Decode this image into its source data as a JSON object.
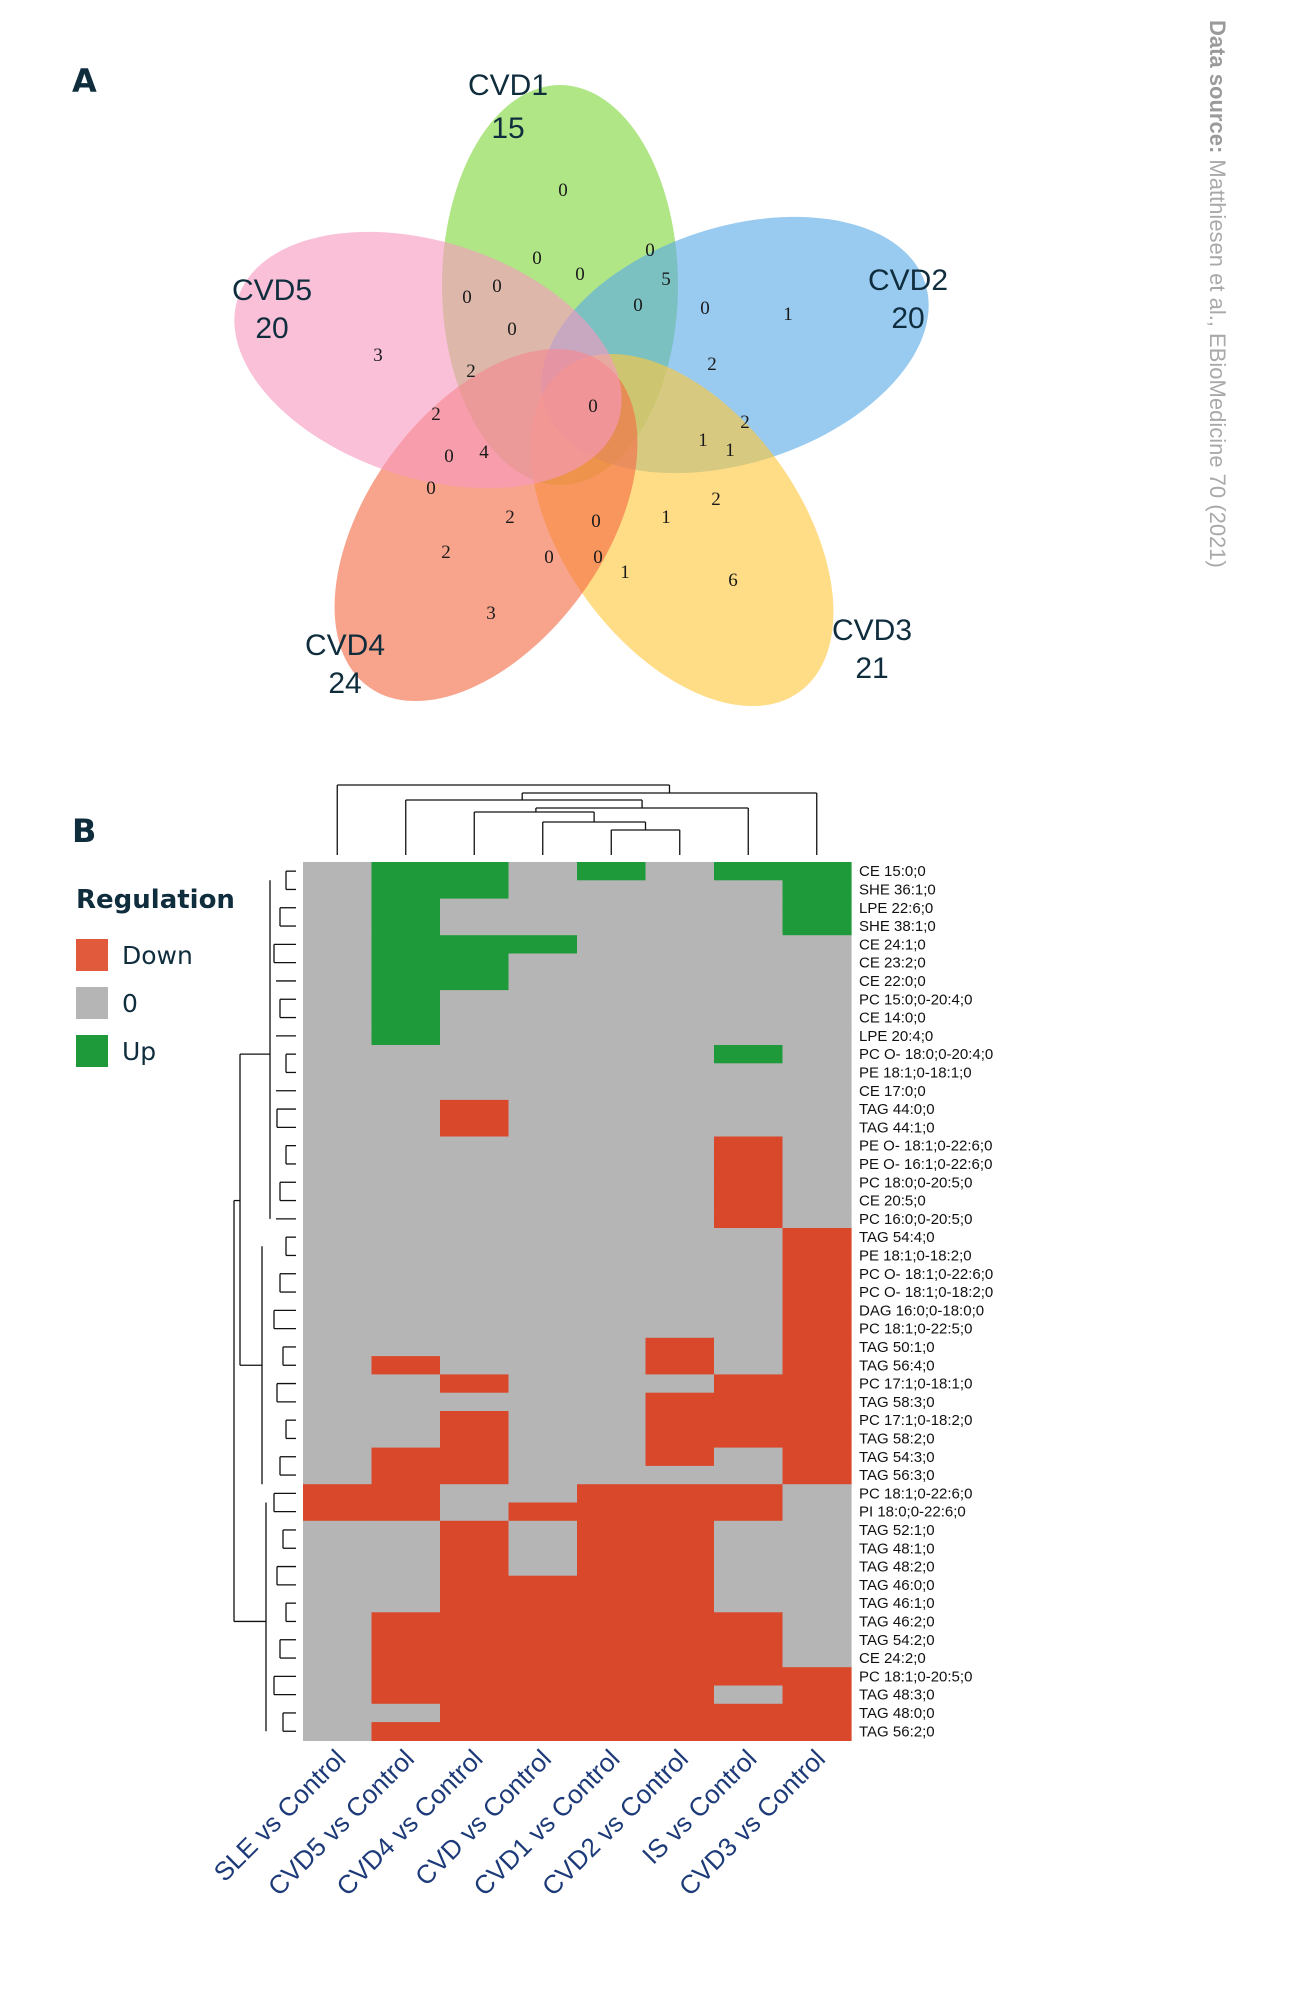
{
  "source_note": {
    "label": "Data source:",
    "text": "Matthiesen et al., EBioMedicine 70 (2021)"
  },
  "panels": {
    "a": "A",
    "b": "B"
  },
  "legend": {
    "title": "Regulation",
    "items": [
      {
        "label": "Down",
        "color": "#e15a3c"
      },
      {
        "label": "0",
        "color": "#b5b5b5"
      },
      {
        "label": "Up",
        "color": "#1f9a3a"
      }
    ]
  },
  "chart_data": [
    {
      "type": "venn",
      "sets": [
        {
          "name": "CVD1",
          "total": "15",
          "color": "#7fd63c"
        },
        {
          "name": "CVD2",
          "total": "20",
          "color": "#5aaae6"
        },
        {
          "name": "CVD3",
          "total": "21",
          "color": "#ffc83c"
        },
        {
          "name": "CVD4",
          "total": "24",
          "color": "#f46a45"
        },
        {
          "name": "CVD5",
          "total": "20",
          "color": "#f79ac0"
        }
      ],
      "region_counts": [
        "0",
        "0",
        "0",
        "0",
        "0",
        "5",
        "0",
        "0",
        "0",
        "1",
        "0",
        "3",
        "2",
        "0",
        "2",
        "2",
        "2",
        "1",
        "1",
        "0",
        "4",
        "0",
        "2",
        "0",
        "1",
        "2",
        "2",
        "6",
        "0",
        "0",
        "1",
        "3"
      ]
    },
    {
      "type": "heatmap",
      "columns": [
        "SLE vs Control",
        "CVD5 vs Control",
        "CVD4 vs Control",
        "CVD vs Control",
        "CVD1 vs Control",
        "CVD2 vs Control",
        "IS vs Control",
        "CVD3 vs Control"
      ],
      "rows": [
        "CE 15:0;0",
        "SHE 36:1;0",
        "LPE 22:6;0",
        "SHE 38:1;0",
        "CE 24:1;0",
        "CE 23:2;0",
        "CE 22:0;0",
        "PC 15:0;0-20:4;0",
        "CE 14:0;0",
        "LPE 20:4;0",
        "PC O- 18:0;0-20:4;0",
        "PE 18:1;0-18:1;0",
        "CE 17:0;0",
        "TAG 44:0;0",
        "TAG 44:1;0",
        "PE O- 18:1;0-22:6;0",
        "PE O- 16:1;0-22:6;0",
        "PC 18:0;0-20:5;0",
        "CE 20:5;0",
        "PC 16:0;0-20:5;0",
        "TAG 54:4;0",
        "PE 18:1;0-18:2;0",
        "PC O- 18:1;0-22:6;0",
        "PC O- 18:1;0-18:2;0",
        "DAG 16:0;0-18:0;0",
        "PC 18:1;0-22:5;0",
        "TAG 50:1;0",
        "TAG 56:4;0",
        "PC 17:1;0-18:1;0",
        "TAG 58:3;0",
        "PC 17:1;0-18:2;0",
        "TAG 58:2;0",
        "TAG 54:3;0",
        "TAG 56:3;0",
        "PC 18:1;0-22:6;0",
        "PI 18:0;0-22:6;0",
        "TAG 52:1;0",
        "TAG 48:1;0",
        "TAG 48:2;0",
        "TAG 46:0;0",
        "TAG 46:1;0",
        "TAG 46:2;0",
        "TAG 54:2;0",
        "CE 24:2;0",
        "PC 18:1;0-20:5;0",
        "TAG 48:3;0",
        "TAG 48:0;0",
        "TAG 56:2;0"
      ],
      "values": [
        [
          0,
          1,
          1,
          0,
          1,
          0,
          1,
          1
        ],
        [
          0,
          1,
          1,
          0,
          0,
          0,
          0,
          1
        ],
        [
          0,
          1,
          0,
          0,
          0,
          0,
          0,
          1
        ],
        [
          0,
          1,
          0,
          0,
          0,
          0,
          0,
          1
        ],
        [
          0,
          1,
          1,
          1,
          0,
          0,
          0,
          0
        ],
        [
          0,
          1,
          1,
          0,
          0,
          0,
          0,
          0
        ],
        [
          0,
          1,
          1,
          0,
          0,
          0,
          0,
          0
        ],
        [
          0,
          1,
          0,
          0,
          0,
          0,
          0,
          0
        ],
        [
          0,
          1,
          0,
          0,
          0,
          0,
          0,
          0
        ],
        [
          0,
          1,
          0,
          0,
          0,
          0,
          0,
          0
        ],
        [
          0,
          0,
          0,
          0,
          0,
          0,
          1,
          0
        ],
        [
          0,
          0,
          0,
          0,
          0,
          0,
          0,
          0
        ],
        [
          0,
          0,
          0,
          0,
          0,
          0,
          0,
          0
        ],
        [
          0,
          0,
          -1,
          0,
          0,
          0,
          0,
          0
        ],
        [
          0,
          0,
          -1,
          0,
          0,
          0,
          0,
          0
        ],
        [
          0,
          0,
          0,
          0,
          0,
          0,
          -1,
          0
        ],
        [
          0,
          0,
          0,
          0,
          0,
          0,
          -1,
          0
        ],
        [
          0,
          0,
          0,
          0,
          0,
          0,
          -1,
          0
        ],
        [
          0,
          0,
          0,
          0,
          0,
          0,
          -1,
          0
        ],
        [
          0,
          0,
          0,
          0,
          0,
          0,
          -1,
          0
        ],
        [
          0,
          0,
          0,
          0,
          0,
          0,
          0,
          -1
        ],
        [
          0,
          0,
          0,
          0,
          0,
          0,
          0,
          -1
        ],
        [
          0,
          0,
          0,
          0,
          0,
          0,
          0,
          -1
        ],
        [
          0,
          0,
          0,
          0,
          0,
          0,
          0,
          -1
        ],
        [
          0,
          0,
          0,
          0,
          0,
          0,
          0,
          -1
        ],
        [
          0,
          0,
          0,
          0,
          0,
          0,
          0,
          -1
        ],
        [
          0,
          0,
          0,
          0,
          0,
          -1,
          0,
          -1
        ],
        [
          0,
          -1,
          0,
          0,
          0,
          -1,
          0,
          -1
        ],
        [
          0,
          0,
          -1,
          0,
          0,
          0,
          -1,
          -1
        ],
        [
          0,
          0,
          0,
          0,
          0,
          -1,
          -1,
          -1
        ],
        [
          0,
          0,
          -1,
          0,
          0,
          -1,
          -1,
          -1
        ],
        [
          0,
          0,
          -1,
          0,
          0,
          -1,
          -1,
          -1
        ],
        [
          0,
          -1,
          -1,
          0,
          0,
          -1,
          0,
          -1
        ],
        [
          0,
          -1,
          -1,
          0,
          0,
          0,
          0,
          -1
        ],
        [
          -1,
          -1,
          0,
          0,
          -1,
          -1,
          -1,
          0
        ],
        [
          -1,
          -1,
          0,
          -1,
          -1,
          -1,
          -1,
          0
        ],
        [
          0,
          0,
          -1,
          0,
          -1,
          -1,
          0,
          0
        ],
        [
          0,
          0,
          -1,
          0,
          -1,
          -1,
          0,
          0
        ],
        [
          0,
          0,
          -1,
          0,
          -1,
          -1,
          0,
          0
        ],
        [
          0,
          0,
          -1,
          -1,
          -1,
          -1,
          0,
          0
        ],
        [
          0,
          0,
          -1,
          -1,
          -1,
          -1,
          0,
          0
        ],
        [
          0,
          -1,
          -1,
          -1,
          -1,
          -1,
          -1,
          0
        ],
        [
          0,
          -1,
          -1,
          -1,
          -1,
          -1,
          -1,
          0
        ],
        [
          0,
          -1,
          -1,
          -1,
          -1,
          -1,
          -1,
          0
        ],
        [
          0,
          -1,
          -1,
          -1,
          -1,
          -1,
          -1,
          -1
        ],
        [
          0,
          -1,
          -1,
          -1,
          -1,
          -1,
          0,
          -1
        ],
        [
          0,
          0,
          -1,
          -1,
          -1,
          -1,
          -1,
          -1
        ],
        [
          0,
          -1,
          -1,
          -1,
          -1,
          -1,
          -1,
          -1
        ]
      ]
    }
  ]
}
